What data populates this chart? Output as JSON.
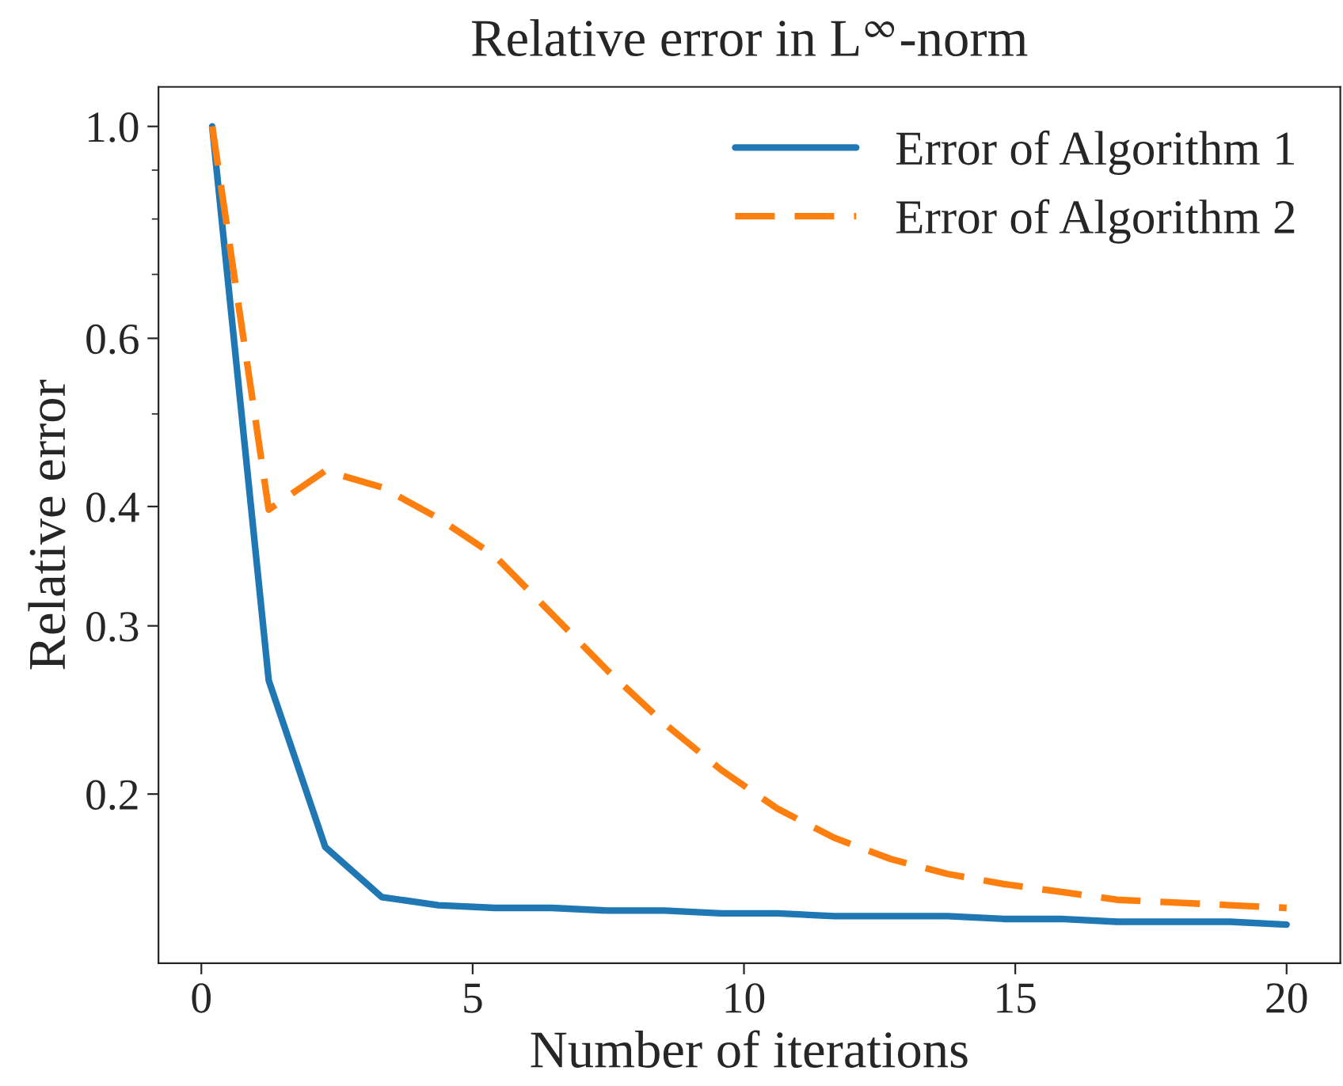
{
  "chart_data": {
    "type": "line",
    "title": "Relative error in L$^{∞}$-norm",
    "xlabel": "Number of iterations",
    "ylabel": "Relative error",
    "x": [
      0.2,
      1.242,
      2.284,
      3.326,
      4.368,
      5.411,
      6.453,
      7.495,
      8.537,
      9.579,
      10.621,
      11.663,
      12.705,
      13.747,
      14.789,
      15.832,
      16.874,
      17.916,
      18.958,
      20.0
    ],
    "series": [
      {
        "name": "Error of Algorithm 1",
        "color": "#1f77b4",
        "line_style": "solid",
        "values": [
          1.0,
          0.263,
          0.176,
          0.156,
          0.153,
          0.152,
          0.152,
          0.151,
          0.151,
          0.15,
          0.15,
          0.149,
          0.149,
          0.149,
          0.148,
          0.148,
          0.147,
          0.147,
          0.147,
          0.146
        ]
      },
      {
        "name": "Error of Algorithm 2",
        "color": "#ff7f0e",
        "line_style": "dashed",
        "values": [
          1.0,
          0.397,
          0.436,
          0.419,
          0.389,
          0.355,
          0.309,
          0.269,
          0.237,
          0.212,
          0.193,
          0.18,
          0.171,
          0.165,
          0.161,
          0.158,
          0.155,
          0.154,
          0.153,
          0.152
        ]
      }
    ],
    "log": "y",
    "xlim": [
      -0.79,
      20.99
    ],
    "ylim": [
      0.133,
      1.1
    ],
    "xticks": [
      0,
      5,
      10,
      15,
      20
    ],
    "yticks": [
      0.2,
      0.3,
      0.4,
      {
        "value": 0.5,
        "label": null
      },
      0.6,
      {
        "value": 0.7,
        "label": null
      },
      {
        "value": 0.8,
        "label": null
      },
      {
        "value": 0.9,
        "label": null
      },
      {
        "value": 1.0,
        "label": "1.0"
      }
    ],
    "grid": false,
    "legend": "top right",
    "marker": "none"
  }
}
